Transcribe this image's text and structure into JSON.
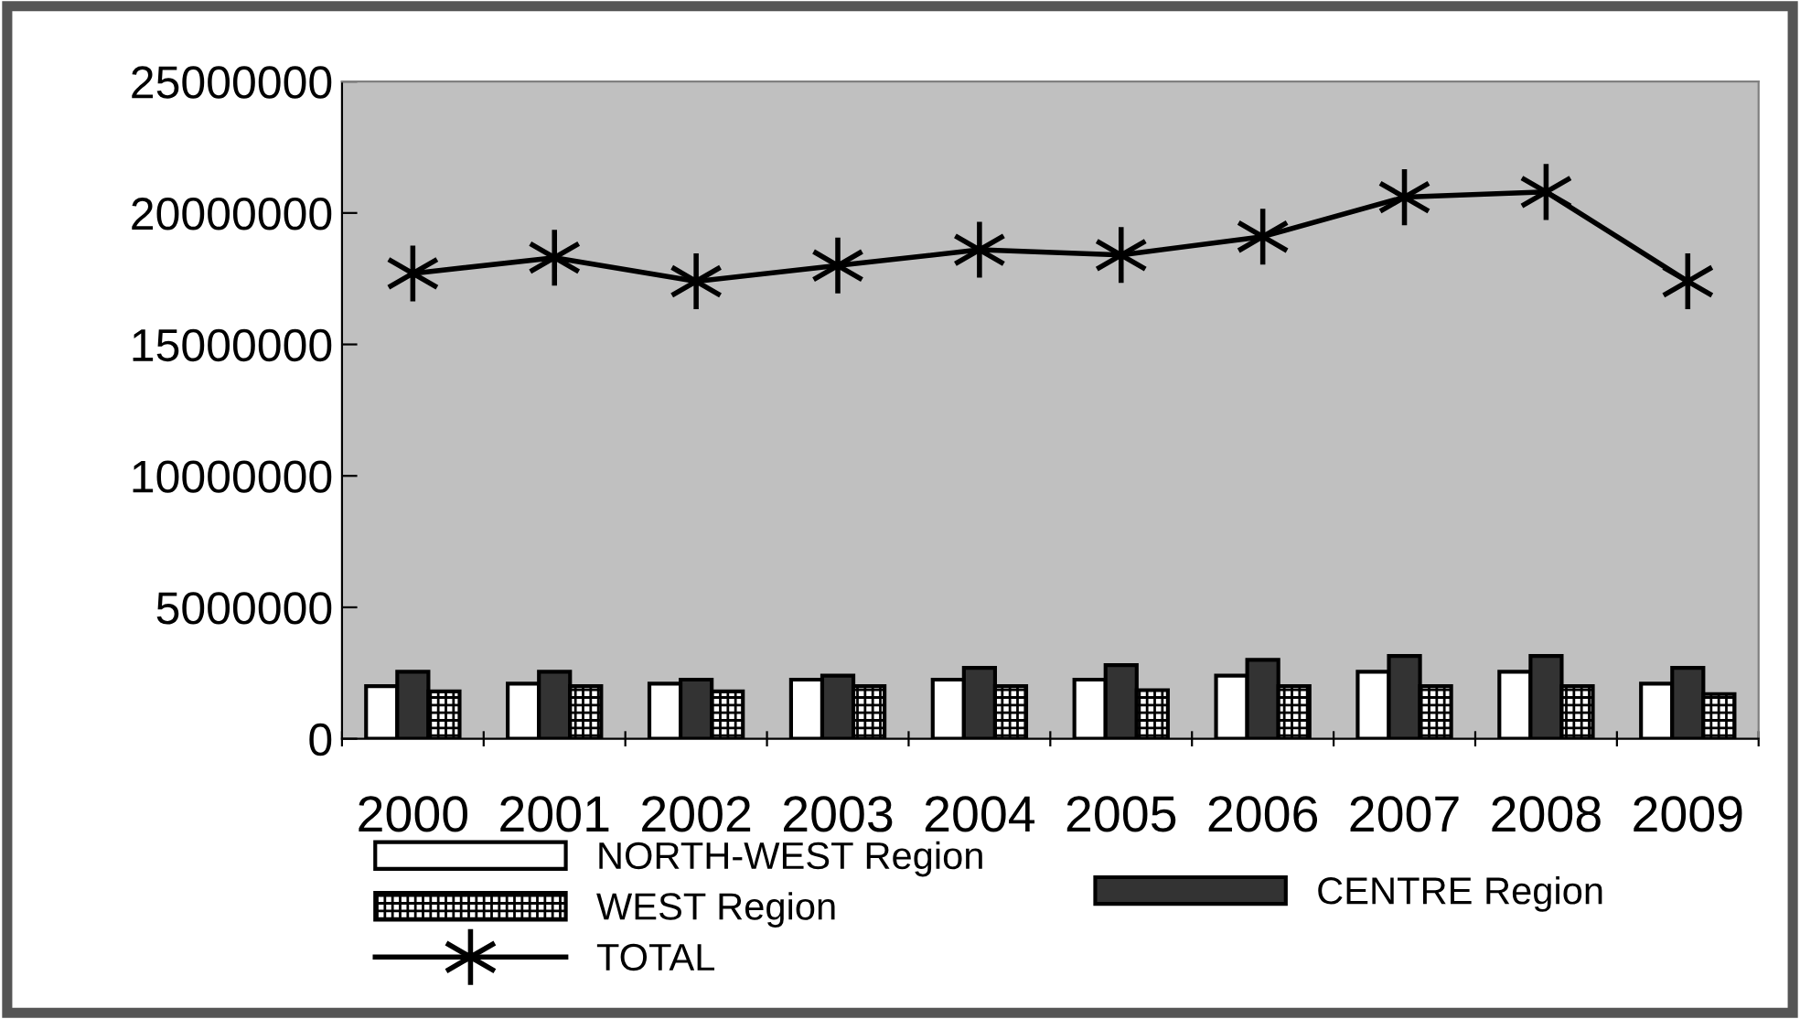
{
  "chart_data": {
    "type": "bar",
    "categories": [
      "2000",
      "2001",
      "2002",
      "2003",
      "2004",
      "2005",
      "2006",
      "2007",
      "2008",
      "2009"
    ],
    "series": [
      {
        "name": "NORTH-WEST Region",
        "color": "#ffffff",
        "values": [
          2000000,
          2100000,
          2100000,
          2250000,
          2250000,
          2250000,
          2400000,
          2550000,
          2550000,
          2100000
        ]
      },
      {
        "name": "CENTRE Region",
        "color": "#333333",
        "values": [
          2550000,
          2550000,
          2250000,
          2400000,
          2700000,
          2800000,
          3000000,
          3150000,
          3150000,
          2700000
        ]
      },
      {
        "name": "WEST Region",
        "color": "#000000",
        "values": [
          1800000,
          2000000,
          1800000,
          2000000,
          2000000,
          1850000,
          2000000,
          2000000,
          2000000,
          1700000
        ]
      },
      {
        "name": "TOTAL",
        "type": "line",
        "color": "#000000",
        "marker": "cross",
        "values": [
          17700000,
          18300000,
          17400000,
          18000000,
          18600000,
          18400000,
          19100000,
          20600000,
          20800000,
          17400000
        ]
      }
    ],
    "ylim": [
      0,
      25000000
    ],
    "yticks": [
      0,
      5000000,
      10000000,
      15000000,
      20000000,
      25000000
    ],
    "grid": false,
    "legend": "bottom"
  }
}
